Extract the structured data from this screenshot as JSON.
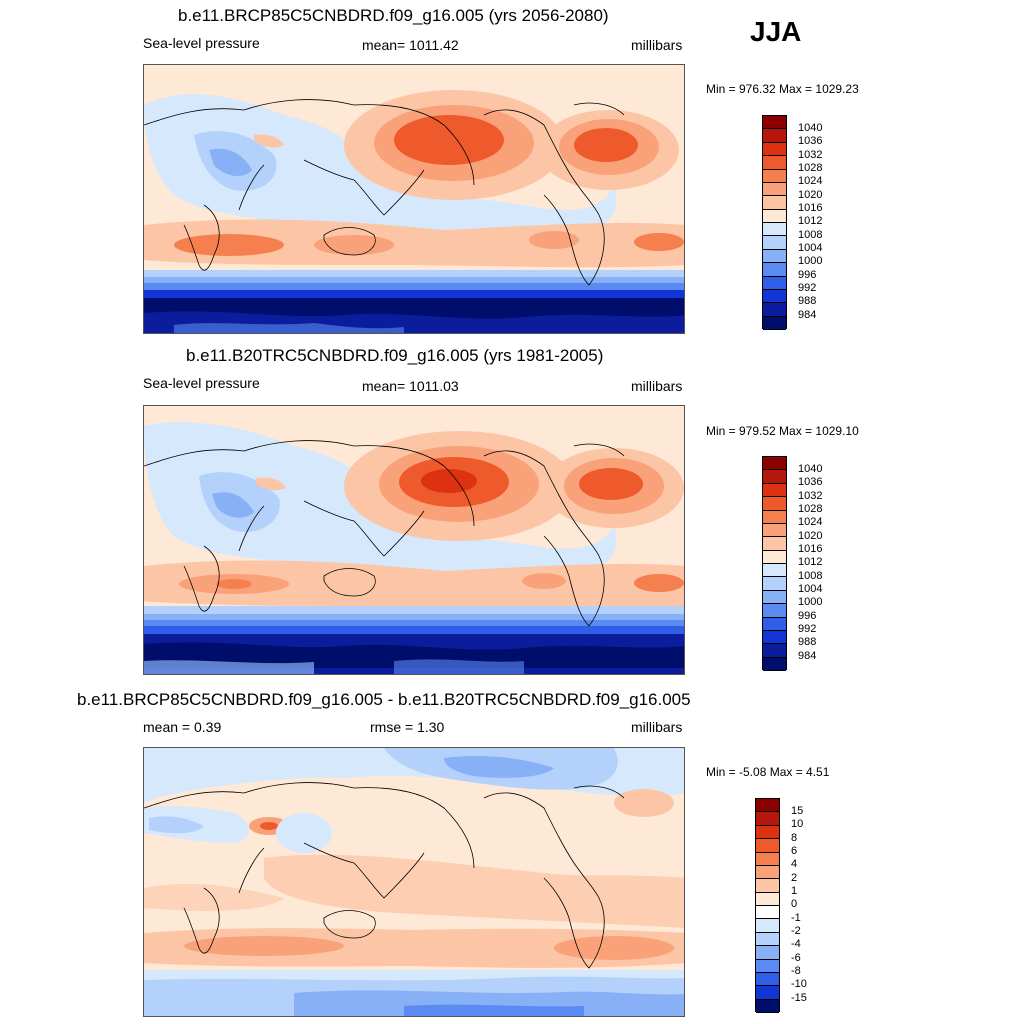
{
  "season": "JJA",
  "panels": [
    {
      "title": "b.e11.BRCP85C5CNBDRD.f09_g16.005 (yrs 2056-2080)",
      "left_label": "Sea-level pressure",
      "center_label": "mean= 1011.42",
      "right_label": "millibars",
      "minmax": "Min = 976.32 Max = 1029.23",
      "levels": [
        "1040",
        "1036",
        "1032",
        "1028",
        "1024",
        "1020",
        "1016",
        "1012",
        "1008",
        "1004",
        "1000",
        "996",
        "992",
        "988",
        "984"
      ],
      "colors": [
        "#8b0000",
        "#b7160c",
        "#dc3212",
        "#ef5a2c",
        "#f57f4e",
        "#f9a27a",
        "#fcc6a6",
        "#fee8d6",
        "#d6e8fb",
        "#b3d1fa",
        "#87b0f7",
        "#5b8af2",
        "#2f5ee9",
        "#1236d6",
        "#0b1c9c",
        "#000e6b"
      ]
    },
    {
      "title": "b.e11.B20TRC5CNBDRD.f09_g16.005 (yrs 1981-2005)",
      "left_label": "Sea-level pressure",
      "center_label": "mean= 1011.03",
      "right_label": "millibars",
      "minmax": "Min = 979.52 Max = 1029.10",
      "levels": [
        "1040",
        "1036",
        "1032",
        "1028",
        "1024",
        "1020",
        "1016",
        "1012",
        "1008",
        "1004",
        "1000",
        "996",
        "992",
        "988",
        "984"
      ],
      "colors": [
        "#8b0000",
        "#b7160c",
        "#dc3212",
        "#ef5a2c",
        "#f57f4e",
        "#f9a27a",
        "#fcc6a6",
        "#fee8d6",
        "#d6e8fb",
        "#b3d1fa",
        "#87b0f7",
        "#5b8af2",
        "#2f5ee9",
        "#1236d6",
        "#0b1c9c",
        "#000e6b"
      ]
    },
    {
      "title": "b.e11.BRCP85C5CNBDRD.f09_g16.005 - b.e11.B20TRC5CNBDRD.f09_g16.005",
      "left_label": "mean =   0.39",
      "center_label": "rmse =   1.30",
      "right_label": "millibars",
      "minmax": "Min =  -5.08 Max =   4.51",
      "levels": [
        "15",
        "10",
        "8",
        "6",
        "4",
        "2",
        "1",
        "0",
        "-1",
        "-2",
        "-4",
        "-6",
        "-8",
        "-10",
        "-15"
      ],
      "colors": [
        "#8b0000",
        "#b7160c",
        "#dc3212",
        "#ef5a2c",
        "#f57f4e",
        "#f9a27a",
        "#fcc6a6",
        "#fee8d6",
        "#ffffff",
        "#d6e8fb",
        "#b3d1fa",
        "#87b0f7",
        "#5b8af2",
        "#2f5ee9",
        "#1236d6",
        "#000e6b"
      ]
    }
  ]
}
